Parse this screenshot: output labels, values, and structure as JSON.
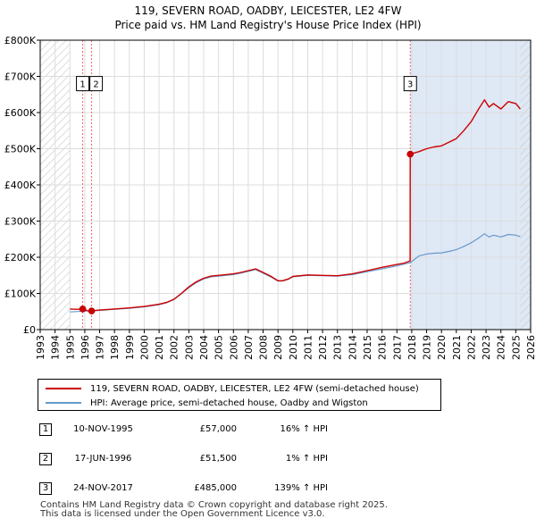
{
  "title": {
    "line1": "119, SEVERN ROAD, OADBY, LEICESTER, LE2 4FW",
    "line2": "Price paid vs. HM Land Registry's House Price Index (HPI)"
  },
  "colors": {
    "property_line": "#cc0000",
    "hpi_line": "#6699cc",
    "highlight_band": "#dfe8f5",
    "hatch": "#c8c8c8",
    "grid": "#dddddd",
    "vline": "#ee6666"
  },
  "chart_data": {
    "type": "line",
    "title": "119, SEVERN ROAD, OADBY, LEICESTER, LE2 4FW — Price paid vs. HM Land Registry's House Price Index (HPI)",
    "xlabel": "",
    "ylabel": "",
    "xlim": [
      1993,
      2026
    ],
    "ylim": [
      0,
      800000
    ],
    "grid": true,
    "y_ticks": [
      0,
      100000,
      200000,
      300000,
      400000,
      500000,
      600000,
      700000,
      800000
    ],
    "y_tick_labels": [
      "£0",
      "£100K",
      "£200K",
      "£300K",
      "£400K",
      "£500K",
      "£600K",
      "£700K",
      "£800K"
    ],
    "x_ticks": [
      1993,
      1994,
      1995,
      1996,
      1997,
      1998,
      1999,
      2000,
      2001,
      2002,
      2003,
      2004,
      2005,
      2006,
      2007,
      2008,
      2009,
      2010,
      2011,
      2012,
      2013,
      2014,
      2015,
      2016,
      2017,
      2018,
      2019,
      2020,
      2021,
      2022,
      2023,
      2024,
      2025,
      2026
    ],
    "data_range": [
      1995.0,
      2025.3
    ],
    "highlight_range": [
      2017.9,
      2026
    ],
    "series": [
      {
        "name": "119, SEVERN ROAD, OADBY, LEICESTER, LE2 4FW (semi-detached house)",
        "x": [
          1995.0,
          1995.5,
          1995.86,
          1996.2,
          1996.46,
          1997.0,
          1998.0,
          1999.0,
          2000.0,
          2001.0,
          2001.5,
          2002.0,
          2002.5,
          2003.0,
          2003.5,
          2004.0,
          2004.5,
          2005.0,
          2005.5,
          2006.0,
          2006.5,
          2007.0,
          2007.5,
          2008.0,
          2008.5,
          2009.0,
          2009.3,
          2009.7,
          2010.0,
          2011.0,
          2012.0,
          2013.0,
          2014.0,
          2015.0,
          2016.0,
          2017.0,
          2017.5,
          2017.89,
          2017.9,
          2018.5,
          2019.0,
          2019.5,
          2020.0,
          2020.5,
          2021.0,
          2021.5,
          2022.0,
          2022.5,
          2022.9,
          2023.2,
          2023.5,
          2024.0,
          2024.5,
          2025.0,
          2025.3
        ],
        "values": [
          57000,
          56000,
          57000,
          52000,
          51500,
          54000,
          57000,
          60000,
          64000,
          70000,
          75000,
          84000,
          100000,
          118000,
          132000,
          142000,
          148000,
          150000,
          152000,
          154000,
          158000,
          163000,
          168000,
          158000,
          148000,
          135000,
          135000,
          140000,
          147000,
          151000,
          150000,
          149000,
          154000,
          163000,
          172000,
          180000,
          184000,
          190000,
          485000,
          492000,
          500000,
          505000,
          508000,
          518000,
          528000,
          550000,
          575000,
          610000,
          635000,
          615000,
          625000,
          610000,
          630000,
          625000,
          610000
        ]
      },
      {
        "name": "HPI: Average price, semi-detached house, Oadby and Wigston",
        "x": [
          1995.0,
          1996.0,
          1997.0,
          1998.0,
          1999.0,
          2000.0,
          2001.0,
          2001.5,
          2002.0,
          2002.5,
          2003.0,
          2003.5,
          2004.0,
          2004.5,
          2005.0,
          2005.5,
          2006.0,
          2006.5,
          2007.0,
          2007.5,
          2008.0,
          2008.5,
          2009.0,
          2009.3,
          2009.7,
          2010.0,
          2011.0,
          2012.0,
          2013.0,
          2014.0,
          2015.0,
          2016.0,
          2017.0,
          2017.5,
          2017.9,
          2018.5,
          2019.0,
          2019.5,
          2020.0,
          2020.5,
          2021.0,
          2021.5,
          2022.0,
          2022.5,
          2022.9,
          2023.2,
          2023.5,
          2024.0,
          2024.5,
          2025.0,
          2025.3
        ],
        "values": [
          49000,
          51000,
          53000,
          56000,
          59000,
          63000,
          69000,
          74000,
          83000,
          99000,
          116000,
          130000,
          140000,
          146000,
          148000,
          150000,
          152000,
          156000,
          161000,
          166000,
          156000,
          146000,
          134000,
          134000,
          139000,
          146000,
          150000,
          149000,
          148000,
          152000,
          160000,
          168000,
          176000,
          181000,
          185000,
          204000,
          209000,
          211000,
          212000,
          216000,
          221000,
          230000,
          240000,
          253000,
          265000,
          256000,
          261000,
          256000,
          263000,
          261000,
          257000
        ]
      }
    ],
    "sale_markers": [
      {
        "label": "1",
        "x": 1995.86,
        "value": 57000
      },
      {
        "label": "2",
        "x": 1996.46,
        "value": 51500
      },
      {
        "label": "3",
        "x": 2017.9,
        "value": 485000
      }
    ],
    "marker_label_value": 680000
  },
  "legend": {
    "property_label": "119, SEVERN ROAD, OADBY, LEICESTER, LE2 4FW (semi-detached house)",
    "hpi_label": "HPI: Average price, semi-detached house, Oadby and Wigston"
  },
  "sales": [
    {
      "num": "1",
      "date": "10-NOV-1995",
      "price": "£57,000",
      "hpi": "16% ↑ HPI"
    },
    {
      "num": "2",
      "date": "17-JUN-1996",
      "price": "£51,500",
      "hpi": "1% ↑ HPI"
    },
    {
      "num": "3",
      "date": "24-NOV-2017",
      "price": "£485,000",
      "hpi": "139% ↑ HPI"
    }
  ],
  "footer": {
    "line1": "Contains HM Land Registry data © Crown copyright and database right 2025.",
    "line2": "This data is licensed under the Open Government Licence v3.0."
  }
}
